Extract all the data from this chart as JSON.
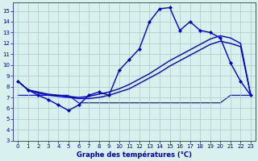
{
  "title": "Graphe des températures (°C)",
  "x_hours": [
    0,
    1,
    2,
    3,
    4,
    5,
    6,
    7,
    8,
    9,
    10,
    11,
    12,
    13,
    14,
    15,
    16,
    17,
    18,
    19,
    20,
    21,
    22,
    23
  ],
  "series": [
    {
      "name": "jagged_with_markers",
      "y": [
        8.5,
        7.7,
        7.2,
        6.8,
        6.3,
        5.8,
        6.3,
        7.2,
        7.5,
        7.2,
        9.5,
        10.5,
        11.5,
        14.0,
        15.2,
        15.3,
        13.2,
        14.0,
        13.2,
        13.0,
        12.5,
        10.2,
        8.5,
        7.2
      ],
      "color": "#0000cc",
      "marker": "D",
      "markersize": 2.0,
      "linewidth": 1.0,
      "zorder": 3
    },
    {
      "name": "smooth_upper",
      "y": [
        8.5,
        7.7,
        7.5,
        7.3,
        7.2,
        7.1,
        7.0,
        7.1,
        7.3,
        7.5,
        7.8,
        8.2,
        8.7,
        9.2,
        9.8,
        10.4,
        10.9,
        11.4,
        11.9,
        12.4,
        12.7,
        12.5,
        12.0,
        7.2
      ],
      "color": "#0000cc",
      "marker": null,
      "markersize": 0,
      "linewidth": 1.0,
      "zorder": 2
    },
    {
      "name": "smooth_lower",
      "y": [
        8.5,
        7.7,
        7.4,
        7.2,
        7.1,
        7.0,
        6.9,
        6.9,
        7.0,
        7.2,
        7.5,
        7.8,
        8.3,
        8.8,
        9.3,
        9.9,
        10.4,
        10.9,
        11.4,
        11.9,
        12.2,
        12.0,
        11.7,
        7.2
      ],
      "color": "#0000cc",
      "marker": null,
      "markersize": 0,
      "linewidth": 1.0,
      "zorder": 2
    },
    {
      "name": "flat_line",
      "y": [
        7.2,
        7.2,
        7.2,
        7.2,
        7.2,
        7.2,
        6.5,
        6.5,
        6.5,
        6.5,
        6.5,
        6.5,
        6.5,
        6.5,
        6.5,
        6.5,
        6.5,
        6.5,
        6.5,
        6.5,
        6.5,
        7.2,
        7.2,
        7.2
      ],
      "color": "#0000cc",
      "marker": null,
      "markersize": 0,
      "linewidth": 0.8,
      "zorder": 1
    }
  ],
  "xlim": [
    -0.5,
    23.5
  ],
  "ylim": [
    3,
    15.8
  ],
  "yticks": [
    3,
    4,
    5,
    6,
    7,
    8,
    9,
    10,
    11,
    12,
    13,
    14,
    15
  ],
  "xticks": [
    0,
    1,
    2,
    3,
    4,
    5,
    6,
    7,
    8,
    9,
    10,
    11,
    12,
    13,
    14,
    15,
    16,
    17,
    18,
    19,
    20,
    21,
    22,
    23
  ],
  "bg_color": "#d8f0ee",
  "grid_color": "#aac8c8",
  "tick_color": "#0000aa",
  "label_color": "#0000aa"
}
